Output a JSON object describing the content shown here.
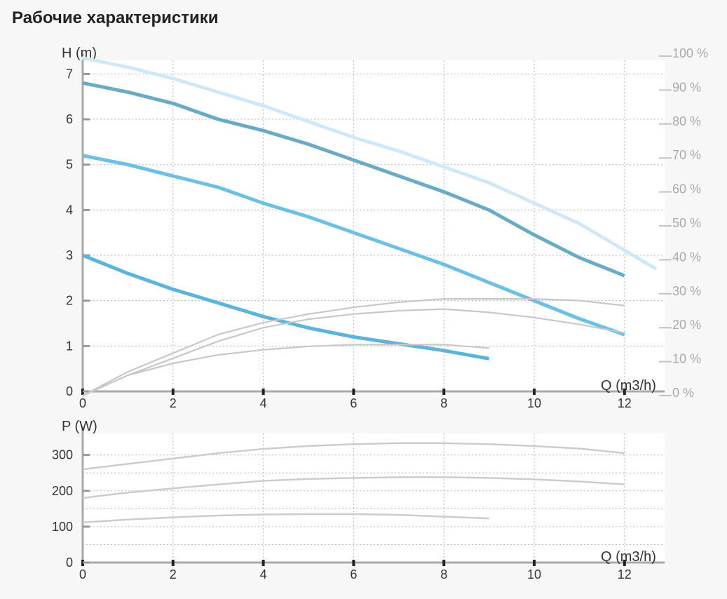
{
  "page": {
    "title": "Рабочие характеристики"
  },
  "chart_data": [
    {
      "type": "line",
      "id": "head",
      "ylabel": "H (m)",
      "xlabel": "Q (m3/h)",
      "xlim": [
        0,
        12.7
      ],
      "ylim": [
        0,
        7.3
      ],
      "xticks": [
        0,
        2,
        4,
        6,
        8,
        10,
        12
      ],
      "yticks": [
        0,
        1,
        2,
        3,
        4,
        5,
        6,
        7
      ],
      "y2label": "",
      "y2lim": [
        0,
        100
      ],
      "y2ticks": [
        0,
        10,
        20,
        30,
        40,
        50,
        60,
        70,
        80,
        90,
        100
      ],
      "y2tick_suffix": " %",
      "grid": true,
      "colors": {
        "high": "#6aaac4",
        "mid": "#6cc0e3",
        "low": "#5cb4dc",
        "max": "#cfe8f5",
        "eff": "#c8c8c8"
      },
      "series": [
        {
          "role": "max",
          "style": "dotted",
          "axis": "left",
          "x": [
            0,
            1,
            2,
            3,
            4,
            5,
            6,
            7,
            8,
            9,
            10,
            11,
            12.7
          ],
          "y": [
            7.35,
            7.15,
            6.9,
            6.6,
            6.3,
            5.95,
            5.6,
            5.3,
            4.95,
            4.6,
            4.15,
            3.7,
            2.7
          ]
        },
        {
          "role": "high",
          "style": "solid",
          "axis": "left",
          "x": [
            0,
            1,
            2,
            3,
            4,
            5,
            6,
            7,
            8,
            9,
            10,
            11,
            12
          ],
          "y": [
            6.8,
            6.6,
            6.35,
            6.0,
            5.75,
            5.45,
            5.1,
            4.75,
            4.4,
            4.0,
            3.45,
            2.95,
            2.55
          ]
        },
        {
          "role": "mid",
          "style": "solid",
          "axis": "left",
          "x": [
            0,
            1,
            2,
            3,
            4,
            5,
            6,
            7,
            8,
            9,
            10,
            11,
            12
          ],
          "y": [
            5.2,
            5.0,
            4.75,
            4.5,
            4.15,
            3.85,
            3.5,
            3.15,
            2.8,
            2.4,
            2.0,
            1.6,
            1.25
          ]
        },
        {
          "role": "low",
          "style": "solid",
          "axis": "left",
          "x": [
            0,
            1,
            2,
            3,
            4,
            5,
            6,
            7,
            8,
            9
          ],
          "y": [
            3.0,
            2.6,
            2.25,
            1.95,
            1.65,
            1.4,
            1.2,
            1.05,
            0.9,
            0.72
          ]
        },
        {
          "role": "eff",
          "style": "thin",
          "axis": "right",
          "x": [
            0,
            1,
            2,
            3,
            4,
            5,
            6,
            7,
            8,
            9,
            10,
            11,
            12
          ],
          "y": [
            0,
            7,
            12.5,
            18,
            21.5,
            24,
            26,
            27.5,
            28.5,
            28.5,
            28.5,
            28,
            26.5
          ]
        },
        {
          "role": "eff",
          "style": "thin",
          "axis": "right",
          "x": [
            0,
            1,
            2,
            3,
            4,
            5,
            6,
            7,
            8,
            9,
            10,
            11,
            12
          ],
          "y": [
            0,
            6,
            11,
            16,
            20,
            22.5,
            24,
            25,
            25.5,
            24.5,
            23,
            21,
            18.5
          ]
        },
        {
          "role": "eff",
          "style": "thin",
          "axis": "right",
          "x": [
            0,
            1,
            2,
            3,
            4,
            5,
            6,
            7,
            8,
            9
          ],
          "y": [
            0,
            6,
            9.5,
            12,
            13.5,
            14.5,
            15,
            15,
            15,
            14
          ]
        }
      ]
    },
    {
      "type": "line",
      "id": "power",
      "ylabel": "P (W)",
      "xlabel": "Q (m3/h)",
      "xlim": [
        0,
        12.7
      ],
      "ylim": [
        0,
        360
      ],
      "xticks": [
        0,
        2,
        4,
        6,
        8,
        10,
        12
      ],
      "yticks": [
        0,
        100,
        200,
        300
      ],
      "grid": true,
      "colors": {
        "line": "#cccccc"
      },
      "series": [
        {
          "x": [
            0,
            1,
            2,
            3,
            4,
            5,
            6,
            7,
            8,
            9,
            10,
            11,
            12
          ],
          "y": [
            260,
            275,
            290,
            305,
            317,
            325,
            330,
            333,
            333,
            330,
            325,
            318,
            305
          ]
        },
        {
          "x": [
            0,
            1,
            2,
            3,
            4,
            5,
            6,
            7,
            8,
            9,
            10,
            11,
            12
          ],
          "y": [
            180,
            195,
            207,
            218,
            228,
            233,
            236,
            238,
            238,
            236,
            232,
            226,
            218
          ]
        },
        {
          "x": [
            0,
            1,
            2,
            3,
            4,
            5,
            6,
            7,
            8,
            9
          ],
          "y": [
            112,
            120,
            126,
            131,
            134,
            135,
            135,
            133,
            128,
            123
          ]
        }
      ]
    }
  ]
}
